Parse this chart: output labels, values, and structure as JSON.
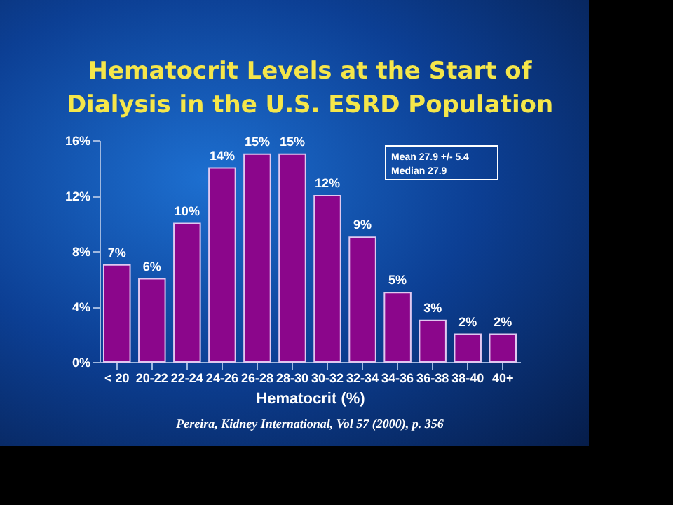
{
  "chart_data": {
    "type": "bar",
    "title": "Hematocrit Levels at the Start of Dialysis in the U.S. ESRD Population",
    "xlabel": "Hematocrit (%)",
    "categories": [
      "< 20",
      "20-22",
      "22-24",
      "24-26",
      "26-28",
      "28-30",
      "30-32",
      "32-34",
      "34-36",
      "36-38",
      "38-40",
      "40+"
    ],
    "values": [
      7,
      6,
      10,
      14,
      15,
      15,
      12,
      9,
      5,
      3,
      2,
      2
    ],
    "value_labels": [
      "7%",
      "6%",
      "10%",
      "14%",
      "15%",
      "15%",
      "12%",
      "9%",
      "5%",
      "3%",
      "2%",
      "2%"
    ],
    "color": "#8b068b",
    "ylim": [
      0,
      16
    ],
    "yticks": [
      {
        "value": 0,
        "label": "0%"
      },
      {
        "value": 4,
        "label": "4%"
      },
      {
        "value": 8,
        "label": "8%"
      },
      {
        "value": 12,
        "label": "12%"
      },
      {
        "value": 16,
        "label": "16%"
      }
    ],
    "grid": false,
    "annotations": [
      "Mean 27.9 +/- 5.4",
      "Median 27.9",
      "Pereira, Kidney International, Vol 57 (2000), p. 356"
    ]
  }
}
